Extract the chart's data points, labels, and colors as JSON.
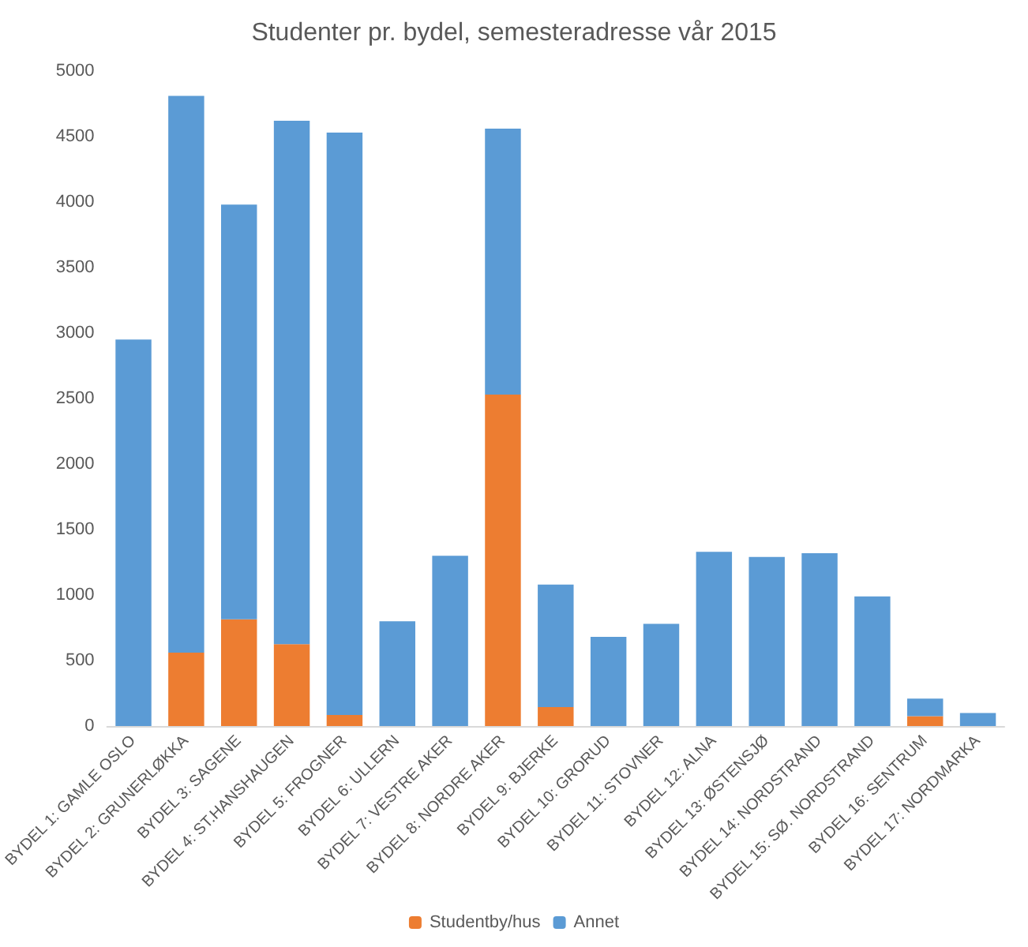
{
  "chart_data": {
    "type": "bar",
    "title": "Studenter pr. bydel, semesteradresse vår 2015",
    "stacked": true,
    "legend": "bottom",
    "categories": [
      "BYDEL 1: GAMLE OSLO",
      "BYDEL 2: GRUNERLØKKA",
      "BYDEL 3: SAGENE",
      "BYDEL 4: ST.HANSHAUGEN",
      "BYDEL 5: FROGNER",
      "BYDEL 6: ULLERN",
      "BYDEL 7: VESTRE AKER",
      "BYDEL 8: NORDRE AKER",
      "BYDEL 9: BJERKE",
      "BYDEL 10: GRORUD",
      "BYDEL 11: STOVNER",
      "BYDEL 12: ALNA",
      "BYDEL 13: ØSTENSJØ",
      "BYDEL 14: NORDSTRAND",
      "BYDEL 15: SØ. NORDSTRAND",
      "BYDEL 16: SENTRUM",
      "BYDEL 17: NORDMARKA"
    ],
    "series": [
      {
        "name": "Studentby/hus",
        "color": "#ed7d31",
        "values": [
          0,
          560,
          815,
          625,
          85,
          0,
          0,
          2530,
          145,
          0,
          0,
          0,
          0,
          0,
          0,
          75,
          0
        ]
      },
      {
        "name": "Annet",
        "color": "#5b9bd5",
        "values": [
          2950,
          4250,
          3165,
          3995,
          4445,
          800,
          1300,
          2030,
          935,
          680,
          780,
          1330,
          1290,
          1320,
          990,
          135,
          100
        ]
      }
    ],
    "ylim": [
      0,
      5000
    ],
    "yticks": [
      0,
      500,
      1000,
      1500,
      2000,
      2500,
      3000,
      3500,
      4000,
      4500,
      5000
    ]
  }
}
